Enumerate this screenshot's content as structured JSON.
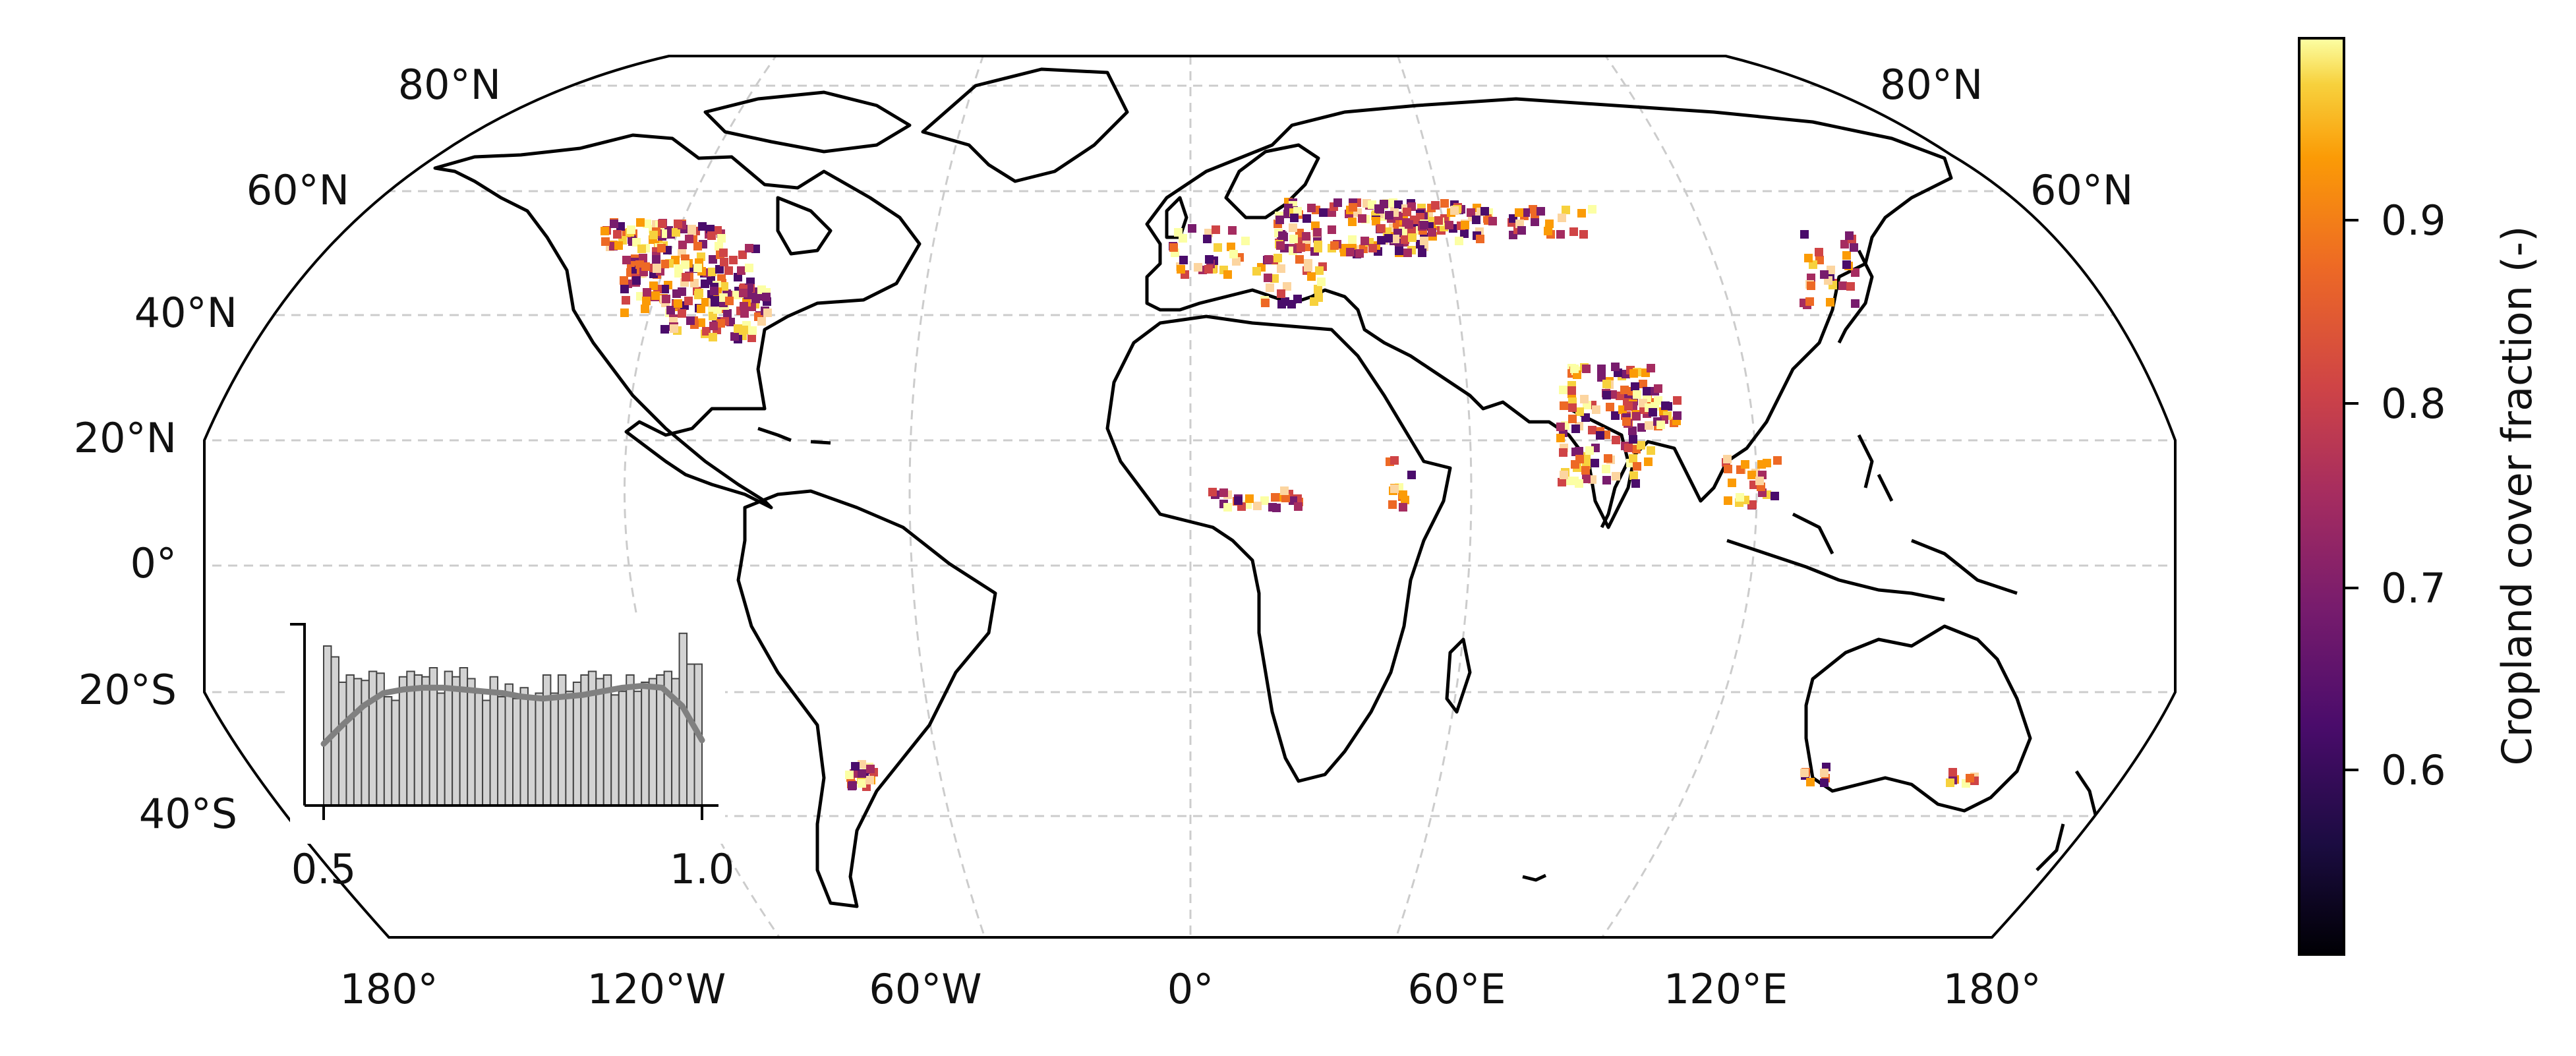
{
  "map": {
    "lat_labels_left": [
      "80°N",
      "60°N",
      "40°N",
      "20°N",
      "0°",
      "20°S",
      "40°S"
    ],
    "lat_labels_right": [
      "80°N",
      "60°N"
    ],
    "lon_labels": [
      "180°",
      "120°W",
      "60°W",
      "0°",
      "60°E",
      "120°E",
      "180°"
    ],
    "colors": {
      "coast": "#000000",
      "grid": "#cccccc",
      "frame": "#000000"
    },
    "cmap": "inferno"
  },
  "colorbar": {
    "label": "Cropland cover fraction (-)",
    "ticks": [
      "0.6",
      "0.7",
      "0.8",
      "0.9"
    ],
    "range": [
      0.5,
      1.0
    ]
  },
  "inset": {
    "xticks": [
      "0.5",
      "1.0"
    ],
    "bar_color": "#d3d3d3",
    "kde_color": "#808080"
  },
  "chart_data": {
    "type": "histogram",
    "x": [
      0.505,
      0.515,
      0.525,
      0.535,
      0.545,
      0.555,
      0.565,
      0.575,
      0.585,
      0.595,
      0.605,
      0.615,
      0.625,
      0.635,
      0.645,
      0.655,
      0.665,
      0.675,
      0.685,
      0.695,
      0.705,
      0.715,
      0.725,
      0.735,
      0.745,
      0.755,
      0.765,
      0.775,
      0.785,
      0.795,
      0.805,
      0.815,
      0.825,
      0.835,
      0.845,
      0.855,
      0.865,
      0.875,
      0.885,
      0.895,
      0.905,
      0.915,
      0.925,
      0.935,
      0.945,
      0.955,
      0.965,
      0.975,
      0.985,
      0.995
    ],
    "values": [
      0.88,
      0.82,
      0.68,
      0.72,
      0.7,
      0.69,
      0.74,
      0.73,
      0.6,
      0.58,
      0.71,
      0.74,
      0.72,
      0.71,
      0.76,
      0.62,
      0.74,
      0.71,
      0.76,
      0.7,
      0.62,
      0.58,
      0.71,
      0.6,
      0.67,
      0.59,
      0.65,
      0.6,
      0.62,
      0.72,
      0.62,
      0.72,
      0.63,
      0.68,
      0.72,
      0.74,
      0.7,
      0.72,
      0.61,
      0.63,
      0.72,
      0.63,
      0.68,
      0.7,
      0.72,
      0.74,
      0.7,
      0.95,
      0.78,
      0.78
    ],
    "kde": [
      0.34,
      0.45,
      0.55,
      0.62,
      0.64,
      0.65,
      0.65,
      0.64,
      0.63,
      0.62,
      0.6,
      0.59,
      0.6,
      0.61,
      0.63,
      0.65,
      0.66,
      0.65,
      0.55,
      0.36
    ],
    "xlim": [
      0.5,
      1.0
    ],
    "ylim": [
      0,
      1
    ]
  }
}
